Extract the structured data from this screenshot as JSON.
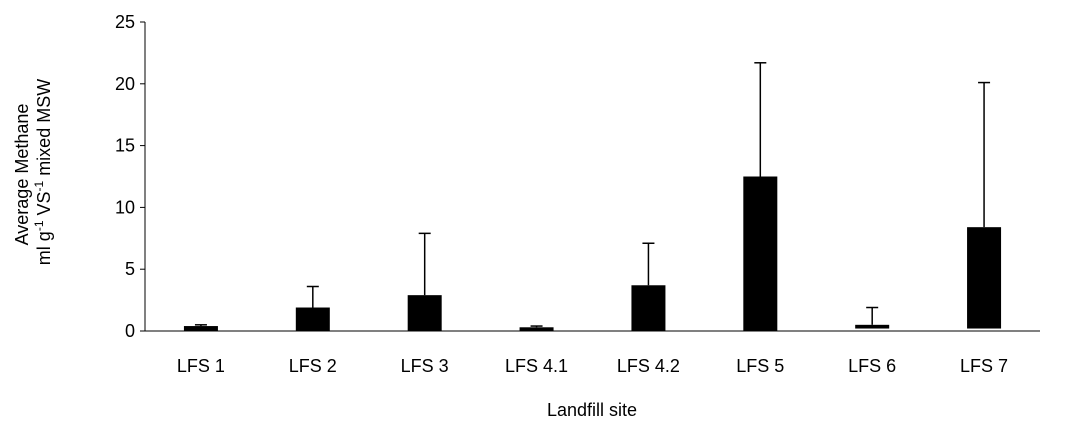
{
  "chart_data": {
    "type": "bar",
    "categories": [
      "LFS 1",
      "LFS 2",
      "LFS 3",
      "LFS 4.1",
      "LFS 4.2",
      "LFS 5",
      "LFS 6",
      "LFS 7"
    ],
    "values": [
      0.4,
      1.9,
      2.9,
      0.3,
      3.7,
      12.5,
      0.5,
      8.4
    ],
    "error_plus": [
      0.1,
      1.7,
      5.0,
      0.1,
      3.4,
      9.2,
      1.4,
      11.7
    ],
    "bar_bottom": [
      0,
      0,
      0,
      0,
      0,
      0,
      0.2,
      0.2
    ],
    "title": "",
    "xlabel": "Landfill site",
    "ylabel_line1": "Average Methane",
    "ylabel_line2": {
      "pre": "ml g",
      "sup1": "-1",
      "mid": " VS",
      "sup2": "-1",
      "post": " mixed MSW"
    },
    "ylim": [
      0,
      25
    ],
    "yticks": [
      0,
      5,
      10,
      15,
      20,
      25
    ],
    "grid": false,
    "legend": "none",
    "bar_color": "#000000"
  }
}
